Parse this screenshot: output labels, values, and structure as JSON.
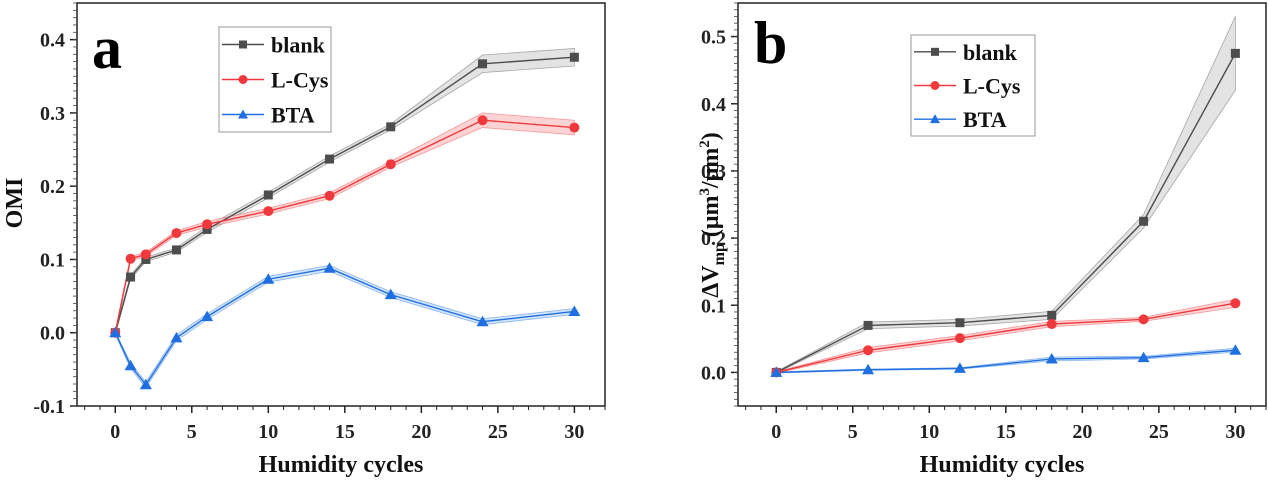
{
  "chart_data": [
    {
      "type": "line",
      "panel_label": "a",
      "title": "",
      "xlabel": "Humidity cycles",
      "ylabel": "OMI",
      "xlim": [
        -2.5,
        32
      ],
      "ylim": [
        -0.1,
        0.45
      ],
      "xticks": [
        0,
        5,
        10,
        15,
        20,
        25,
        30
      ],
      "xtick_labels": [
        "0",
        "5",
        "10",
        "15",
        "20",
        "25",
        "30"
      ],
      "yticks": [
        -0.1,
        0.0,
        0.1,
        0.2,
        0.3,
        0.4
      ],
      "ytick_labels": [
        "-0.1",
        "0.0",
        "0.1",
        "0.2",
        "0.3",
        "0.4"
      ],
      "grid": false,
      "legend_position": "top-center",
      "x": [
        0,
        1,
        2,
        4,
        6,
        10,
        14,
        18,
        24,
        30
      ],
      "series": [
        {
          "name": "blank",
          "color": "#4d4d4d",
          "band_color": "#d9d9d9",
          "marker": "square",
          "values": [
            0,
            0.076,
            0.1,
            0.113,
            0.141,
            0.188,
            0.237,
            0.281,
            0.367,
            0.376
          ],
          "error": [
            0.002,
            0.003,
            0.003,
            0.003,
            0.004,
            0.004,
            0.004,
            0.004,
            0.012,
            0.012
          ]
        },
        {
          "name": "L-Cys",
          "color": "#f0393c",
          "band_color": "#f9c4c5",
          "marker": "circle",
          "values": [
            0,
            0.101,
            0.107,
            0.136,
            0.148,
            0.166,
            0.187,
            0.23,
            0.29,
            0.28
          ],
          "error": [
            0.002,
            0.003,
            0.003,
            0.003,
            0.004,
            0.004,
            0.004,
            0.004,
            0.01,
            0.01
          ]
        },
        {
          "name": "BTA",
          "color": "#1f6fe0",
          "band_color": "#c6dcf7",
          "marker": "triangle",
          "values": [
            0,
            -0.045,
            -0.071,
            -0.007,
            0.022,
            0.073,
            0.088,
            0.052,
            0.015,
            0.029
          ],
          "error": [
            0.002,
            0.004,
            0.004,
            0.004,
            0.004,
            0.004,
            0.004,
            0.004,
            0.004,
            0.004
          ]
        }
      ]
    },
    {
      "type": "line",
      "panel_label": "b",
      "title": "",
      "xlabel": "Humidity cycles",
      "ylabel": "ΔVmp (μm³/μm²)",
      "ylabel_parts": {
        "main": "ΔV",
        "sub": "mp",
        "paren_open": " (μm",
        "sup1": "3",
        "mid": "/μm",
        "sup2": "2",
        "paren_close": ")"
      },
      "xlim": [
        -2.5,
        32
      ],
      "ylim": [
        -0.05,
        0.55
      ],
      "xticks": [
        0,
        5,
        10,
        15,
        20,
        25,
        30
      ],
      "xtick_labels": [
        "0",
        "5",
        "10",
        "15",
        "20",
        "25",
        "30"
      ],
      "yticks": [
        0.0,
        0.1,
        0.2,
        0.3,
        0.4,
        0.5
      ],
      "ytick_labels": [
        "0.0",
        "0.1",
        "0.2",
        "0.3",
        "0.4",
        "0.5"
      ],
      "grid": false,
      "legend_position": "top-center",
      "x": [
        0,
        6,
        12,
        18,
        24,
        30
      ],
      "series": [
        {
          "name": "blank",
          "color": "#4d4d4d",
          "band_color": "#d9d9d9",
          "marker": "square",
          "values": [
            0,
            0.07,
            0.074,
            0.085,
            0.225,
            0.475
          ],
          "error": [
            0.001,
            0.005,
            0.005,
            0.006,
            0.01,
            0.055
          ]
        },
        {
          "name": "L-Cys",
          "color": "#f0393c",
          "band_color": "#f9c4c5",
          "marker": "circle",
          "values": [
            0,
            0.033,
            0.051,
            0.072,
            0.079,
            0.103
          ],
          "error": [
            0.001,
            0.004,
            0.004,
            0.004,
            0.003,
            0.006
          ]
        },
        {
          "name": "BTA",
          "color": "#1f6fe0",
          "band_color": "#c6dcf7",
          "marker": "triangle",
          "values": [
            0,
            0.004,
            0.006,
            0.02,
            0.022,
            0.033
          ],
          "error": [
            0.001,
            0.001,
            0.001,
            0.003,
            0.002,
            0.003
          ]
        }
      ]
    }
  ]
}
